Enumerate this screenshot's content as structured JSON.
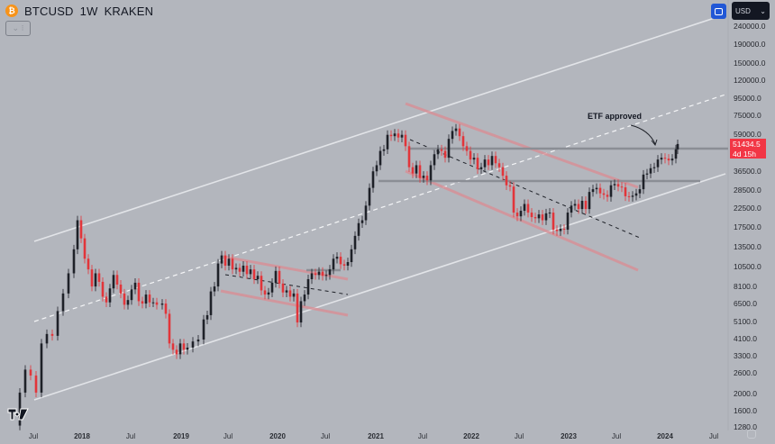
{
  "header": {
    "symbol": "BTCUSD",
    "interval": "1W",
    "exchange": "KRAKEN",
    "coin_glyph": "₿",
    "toggle_glyph": "⌄ ⁝"
  },
  "toolbar": {
    "currency": "USD",
    "currency_caret": "⌄"
  },
  "last_price": {
    "value": "51434.5",
    "countdown": "4d 15h",
    "color": "#f23645"
  },
  "annotation": {
    "text": "ETF approved"
  },
  "colors": {
    "background": "#b3b6bd",
    "up": "#1e2128",
    "down": "#e2353a",
    "channel": "#e2e4e8",
    "red_channel": "#d88f95",
    "hline": "#8b8e95"
  },
  "chart_data": {
    "type": "candlestick",
    "title": "BTCUSD 1W KRAKEN",
    "xlabel": "",
    "ylabel": "USD",
    "y_scale": "log",
    "ylim": [
      1280,
      240000
    ],
    "grid": false,
    "price_ticks": [
      {
        "label": "240000.0",
        "value": 240000,
        "y": 29
      },
      {
        "label": "190000.0",
        "value": 190000,
        "y": 49
      },
      {
        "label": "150000.0",
        "value": 150000,
        "y": 70
      },
      {
        "label": "120000.0",
        "value": 120000,
        "y": 89
      },
      {
        "label": "95000.0",
        "value": 95000,
        "y": 109
      },
      {
        "label": "75000.0",
        "value": 75000,
        "y": 128
      },
      {
        "label": "59000.0",
        "value": 59000,
        "y": 149
      },
      {
        "label": "36500.0",
        "value": 36500,
        "y": 190
      },
      {
        "label": "28500.0",
        "value": 28500,
        "y": 211
      },
      {
        "label": "22500.0",
        "value": 22500,
        "y": 231
      },
      {
        "label": "17500.0",
        "value": 17500,
        "y": 252
      },
      {
        "label": "13500.0",
        "value": 13500,
        "y": 274
      },
      {
        "label": "10500.0",
        "value": 10500,
        "y": 296
      },
      {
        "label": "8100.0",
        "value": 8100,
        "y": 318
      },
      {
        "label": "6500.0",
        "value": 6500,
        "y": 337
      },
      {
        "label": "5100.0",
        "value": 5100,
        "y": 357
      },
      {
        "label": "4100.0",
        "value": 4100,
        "y": 376
      },
      {
        "label": "3300.0",
        "value": 3300,
        "y": 395
      },
      {
        "label": "2600.0",
        "value": 2600,
        "y": 414
      },
      {
        "label": "2000.0",
        "value": 2000,
        "y": 437
      },
      {
        "label": "1600.0",
        "value": 1600,
        "y": 456
      },
      {
        "label": "1280.0",
        "value": 1280,
        "y": 474
      }
    ],
    "time_ticks": [
      {
        "label": "Jul",
        "x": 37,
        "year": false
      },
      {
        "label": "2018",
        "x": 91,
        "year": true
      },
      {
        "label": "Jul",
        "x": 145,
        "year": false
      },
      {
        "label": "2019",
        "x": 201,
        "year": true
      },
      {
        "label": "Jul",
        "x": 253,
        "year": false
      },
      {
        "label": "2020",
        "x": 308,
        "year": true
      },
      {
        "label": "Jul",
        "x": 361,
        "year": false
      },
      {
        "label": "2021",
        "x": 417,
        "year": true
      },
      {
        "label": "Jul",
        "x": 469,
        "year": false
      },
      {
        "label": "2022",
        "x": 523,
        "year": true
      },
      {
        "label": "Jul",
        "x": 576,
        "year": false
      },
      {
        "label": "2023",
        "x": 631,
        "year": true
      },
      {
        "label": "Jul",
        "x": 684,
        "year": false
      },
      {
        "label": "2024",
        "x": 738,
        "year": true
      },
      {
        "label": "Jul",
        "x": 792,
        "year": false
      }
    ],
    "price_path": [
      {
        "x": 16,
        "price": 1300
      },
      {
        "x": 22,
        "price": 2000
      },
      {
        "x": 28,
        "price": 2700
      },
      {
        "x": 34,
        "price": 2500
      },
      {
        "x": 40,
        "price": 2000
      },
      {
        "x": 46,
        "price": 3800
      },
      {
        "x": 52,
        "price": 4300
      },
      {
        "x": 58,
        "price": 4200
      },
      {
        "x": 64,
        "price": 5800
      },
      {
        "x": 70,
        "price": 7300
      },
      {
        "x": 76,
        "price": 9500
      },
      {
        "x": 82,
        "price": 13000
      },
      {
        "x": 86,
        "price": 19000
      },
      {
        "x": 90,
        "price": 15000
      },
      {
        "x": 94,
        "price": 11500
      },
      {
        "x": 98,
        "price": 10000
      },
      {
        "x": 102,
        "price": 8000
      },
      {
        "x": 106,
        "price": 9500
      },
      {
        "x": 110,
        "price": 8500
      },
      {
        "x": 114,
        "price": 7000
      },
      {
        "x": 118,
        "price": 6500
      },
      {
        "x": 122,
        "price": 7800
      },
      {
        "x": 126,
        "price": 9300
      },
      {
        "x": 130,
        "price": 8200
      },
      {
        "x": 134,
        "price": 7300
      },
      {
        "x": 138,
        "price": 6300
      },
      {
        "x": 142,
        "price": 6700
      },
      {
        "x": 146,
        "price": 7700
      },
      {
        "x": 150,
        "price": 8400
      },
      {
        "x": 154,
        "price": 6600
      },
      {
        "x": 158,
        "price": 6400
      },
      {
        "x": 162,
        "price": 7200
      },
      {
        "x": 166,
        "price": 6500
      },
      {
        "x": 170,
        "price": 6500
      },
      {
        "x": 174,
        "price": 6300
      },
      {
        "x": 180,
        "price": 6400
      },
      {
        "x": 184,
        "price": 5600
      },
      {
        "x": 188,
        "price": 3800
      },
      {
        "x": 192,
        "price": 3500
      },
      {
        "x": 196,
        "price": 3300
      },
      {
        "x": 200,
        "price": 3800
      },
      {
        "x": 204,
        "price": 3500
      },
      {
        "x": 208,
        "price": 3600
      },
      {
        "x": 214,
        "price": 3900
      },
      {
        "x": 220,
        "price": 4000
      },
      {
        "x": 226,
        "price": 5200
      },
      {
        "x": 230,
        "price": 5500
      },
      {
        "x": 234,
        "price": 7500
      },
      {
        "x": 238,
        "price": 8000
      },
      {
        "x": 242,
        "price": 10800
      },
      {
        "x": 246,
        "price": 12000
      },
      {
        "x": 250,
        "price": 10500
      },
      {
        "x": 254,
        "price": 11500
      },
      {
        "x": 258,
        "price": 10000
      },
      {
        "x": 262,
        "price": 10200
      },
      {
        "x": 266,
        "price": 9700
      },
      {
        "x": 270,
        "price": 10500
      },
      {
        "x": 274,
        "price": 9400
      },
      {
        "x": 278,
        "price": 10000
      },
      {
        "x": 282,
        "price": 8800
      },
      {
        "x": 286,
        "price": 9200
      },
      {
        "x": 290,
        "price": 7600
      },
      {
        "x": 294,
        "price": 7200
      },
      {
        "x": 298,
        "price": 7400
      },
      {
        "x": 302,
        "price": 8400
      },
      {
        "x": 306,
        "price": 9800
      },
      {
        "x": 310,
        "price": 8300
      },
      {
        "x": 314,
        "price": 7400
      },
      {
        "x": 318,
        "price": 7600
      },
      {
        "x": 322,
        "price": 7000
      },
      {
        "x": 326,
        "price": 7300
      },
      {
        "x": 330,
        "price": 5000
      },
      {
        "x": 334,
        "price": 6600
      },
      {
        "x": 338,
        "price": 7200
      },
      {
        "x": 342,
        "price": 8800
      },
      {
        "x": 346,
        "price": 9500
      },
      {
        "x": 350,
        "price": 9300
      },
      {
        "x": 354,
        "price": 9700
      },
      {
        "x": 358,
        "price": 9200
      },
      {
        "x": 362,
        "price": 9300
      },
      {
        "x": 366,
        "price": 10000
      },
      {
        "x": 370,
        "price": 11500
      },
      {
        "x": 374,
        "price": 11800
      },
      {
        "x": 378,
        "price": 10700
      },
      {
        "x": 382,
        "price": 10500
      },
      {
        "x": 386,
        "price": 11000
      },
      {
        "x": 390,
        "price": 13000
      },
      {
        "x": 394,
        "price": 15500
      },
      {
        "x": 398,
        "price": 18300
      },
      {
        "x": 402,
        "price": 19000
      },
      {
        "x": 406,
        "price": 23000
      },
      {
        "x": 410,
        "price": 29000
      },
      {
        "x": 414,
        "price": 36000
      },
      {
        "x": 418,
        "price": 39000
      },
      {
        "x": 422,
        "price": 47000
      },
      {
        "x": 426,
        "price": 48000
      },
      {
        "x": 430,
        "price": 58000
      },
      {
        "x": 434,
        "price": 57000
      },
      {
        "x": 438,
        "price": 59000
      },
      {
        "x": 442,
        "price": 56000
      },
      {
        "x": 446,
        "price": 58000
      },
      {
        "x": 450,
        "price": 50000
      },
      {
        "x": 454,
        "price": 38000
      },
      {
        "x": 458,
        "price": 35000
      },
      {
        "x": 462,
        "price": 39000
      },
      {
        "x": 466,
        "price": 33000
      },
      {
        "x": 470,
        "price": 34000
      },
      {
        "x": 474,
        "price": 32000
      },
      {
        "x": 478,
        "price": 39000
      },
      {
        "x": 482,
        "price": 45000
      },
      {
        "x": 486,
        "price": 48000
      },
      {
        "x": 490,
        "price": 47000
      },
      {
        "x": 494,
        "price": 43000
      },
      {
        "x": 498,
        "price": 55000
      },
      {
        "x": 502,
        "price": 61000
      },
      {
        "x": 506,
        "price": 63000
      },
      {
        "x": 510,
        "price": 57000
      },
      {
        "x": 514,
        "price": 50000
      },
      {
        "x": 518,
        "price": 47000
      },
      {
        "x": 522,
        "price": 42000
      },
      {
        "x": 526,
        "price": 43000
      },
      {
        "x": 530,
        "price": 37000
      },
      {
        "x": 534,
        "price": 38000
      },
      {
        "x": 538,
        "price": 42000
      },
      {
        "x": 542,
        "price": 39000
      },
      {
        "x": 546,
        "price": 44000
      },
      {
        "x": 550,
        "price": 40000
      },
      {
        "x": 554,
        "price": 38000
      },
      {
        "x": 558,
        "price": 34000
      },
      {
        "x": 562,
        "price": 30000
      },
      {
        "x": 566,
        "price": 29500
      },
      {
        "x": 570,
        "price": 21000
      },
      {
        "x": 574,
        "price": 20000
      },
      {
        "x": 578,
        "price": 21500
      },
      {
        "x": 582,
        "price": 23500
      },
      {
        "x": 586,
        "price": 21000
      },
      {
        "x": 590,
        "price": 19800
      },
      {
        "x": 594,
        "price": 19500
      },
      {
        "x": 598,
        "price": 20500
      },
      {
        "x": 602,
        "price": 19000
      },
      {
        "x": 606,
        "price": 20800
      },
      {
        "x": 610,
        "price": 21000
      },
      {
        "x": 614,
        "price": 16800
      },
      {
        "x": 618,
        "price": 16500
      },
      {
        "x": 622,
        "price": 17000
      },
      {
        "x": 626,
        "price": 16800
      },
      {
        "x": 630,
        "price": 21000
      },
      {
        "x": 634,
        "price": 23000
      },
      {
        "x": 638,
        "price": 23500
      },
      {
        "x": 642,
        "price": 22000
      },
      {
        "x": 646,
        "price": 24500
      },
      {
        "x": 650,
        "price": 22000
      },
      {
        "x": 654,
        "price": 27500
      },
      {
        "x": 658,
        "price": 28500
      },
      {
        "x": 662,
        "price": 29000
      },
      {
        "x": 666,
        "price": 27000
      },
      {
        "x": 670,
        "price": 26500
      },
      {
        "x": 674,
        "price": 25800
      },
      {
        "x": 678,
        "price": 30000
      },
      {
        "x": 682,
        "price": 30500
      },
      {
        "x": 686,
        "price": 29500
      },
      {
        "x": 690,
        "price": 29200
      },
      {
        "x": 694,
        "price": 26000
      },
      {
        "x": 698,
        "price": 25800
      },
      {
        "x": 702,
        "price": 26200
      },
      {
        "x": 706,
        "price": 27000
      },
      {
        "x": 710,
        "price": 28500
      },
      {
        "x": 714,
        "price": 34500
      },
      {
        "x": 718,
        "price": 35000
      },
      {
        "x": 722,
        "price": 37500
      },
      {
        "x": 726,
        "price": 38000
      },
      {
        "x": 730,
        "price": 42000
      },
      {
        "x": 734,
        "price": 43000
      },
      {
        "x": 738,
        "price": 42500
      },
      {
        "x": 742,
        "price": 41500
      },
      {
        "x": 746,
        "price": 42500
      },
      {
        "x": 750,
        "price": 48000
      },
      {
        "x": 752,
        "price": 51434.5
      }
    ],
    "drawings": [
      {
        "kind": "channel",
        "style": "solid-light",
        "x1": 38,
        "y1": 268,
        "x2": 805,
        "y2": 16
      },
      {
        "kind": "channel",
        "style": "dashed-white",
        "x1": 38,
        "y1": 357,
        "x2": 805,
        "y2": 105
      },
      {
        "kind": "channel",
        "style": "solid-light",
        "x1": 38,
        "y1": 444,
        "x2": 805,
        "y2": 193
      },
      {
        "kind": "red-channel",
        "x1": 450,
        "y1": 115,
        "x2": 708,
        "y2": 208
      },
      {
        "kind": "red-channel",
        "x1": 450,
        "y1": 190,
        "x2": 708,
        "y2": 300
      },
      {
        "kind": "dashed-black",
        "x1": 455,
        "y1": 155,
        "x2": 710,
        "y2": 264
      },
      {
        "kind": "red-channel",
        "x1": 248,
        "y1": 285,
        "x2": 386,
        "y2": 310
      },
      {
        "kind": "red-channel",
        "x1": 245,
        "y1": 323,
        "x2": 386,
        "y2": 350
      },
      {
        "kind": "dashed-black",
        "x1": 250,
        "y1": 305,
        "x2": 386,
        "y2": 327
      },
      {
        "kind": "hline",
        "x1": 340,
        "y1": 300,
        "x2": 378,
        "y2": 300
      },
      {
        "kind": "hline",
        "x1": 420,
        "y1": 201,
        "x2": 777,
        "y2": 201
      },
      {
        "kind": "hline",
        "x1": 455,
        "y1": 165,
        "x2": 808,
        "y2": 165
      }
    ]
  }
}
